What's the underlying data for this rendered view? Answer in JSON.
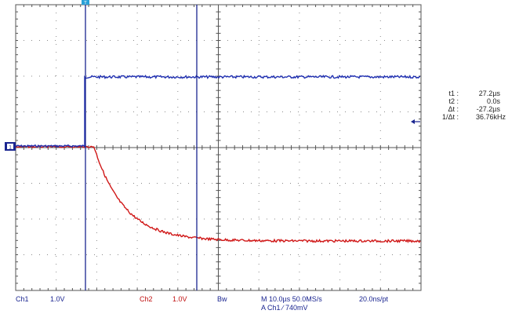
{
  "status_bar": {
    "ch1_label": "Ch1",
    "ch1_scale": "1.0V",
    "ch2_label": "Ch2",
    "ch2_scale": "1.0V",
    "bw_label": "Bw",
    "timebase": "M 10.0µs 50.0MS/s",
    "sample_interval": "20.0ns/pt",
    "trigger": "A  Ch1  ∕  740mV"
  },
  "cursor_readout": {
    "t1_label": "t1 :",
    "t1_value": "27.2µs",
    "t2_label": "t2 :",
    "t2_value": "0.0s",
    "dt_label": "Δt :",
    "dt_value": "-27.2µs",
    "inv_dt_label": "1/Δt :",
    "inv_dt_value": "36.76kHz"
  },
  "markers": {
    "ch1_ground_marker": "1",
    "trigger_position_marker": "T"
  },
  "colors": {
    "ch1": "#1f2fb0",
    "ch2": "#d01818",
    "cursor": "#1a2590",
    "grid": "#555555",
    "status_blue": "#1a2590",
    "status_red": "#c01010"
  }
}
